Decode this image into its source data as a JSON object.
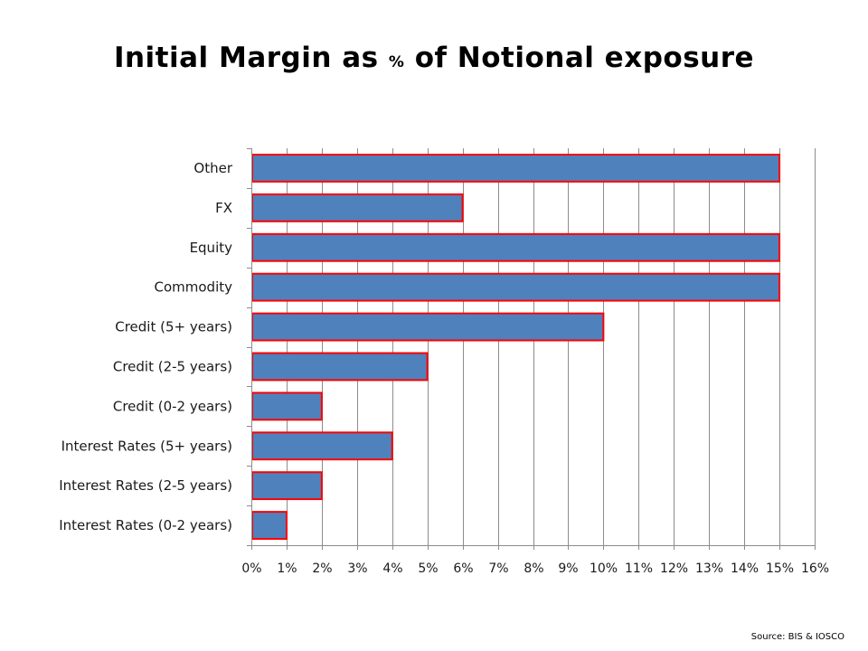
{
  "chart_data": {
    "type": "bar",
    "orientation": "horizontal",
    "title_parts": [
      "Initial Margin as ",
      "%",
      " of Notional exposure"
    ],
    "title": "Initial Margin as % of Notional exposure",
    "categories": [
      "Other",
      "FX",
      "Equity",
      "Commodity",
      "Credit (5+ years)",
      "Credit (2-5 years)",
      "Credit (0-2 years)",
      "Interest Rates (5+ years)",
      "Interest Rates (2-5 years)",
      "Interest Rates (0-2 years)"
    ],
    "values": [
      15,
      6,
      15,
      15,
      10,
      5,
      2,
      4,
      2,
      1
    ],
    "unit": "%",
    "xlim": [
      0,
      16
    ],
    "x_ticks": [
      "0%",
      "1%",
      "2%",
      "3%",
      "4%",
      "5%",
      "6%",
      "7%",
      "8%",
      "9%",
      "10%",
      "11%",
      "12%",
      "13%",
      "14%",
      "15%",
      "16%"
    ],
    "xlabel": "",
    "ylabel": "",
    "grid": "vertical",
    "legend": "none",
    "colors": {
      "bar_fill": "#4f81bd",
      "bar_border": "#ff0000",
      "grid": "#8c8c8c"
    },
    "source": "Source:  BIS & IOSCO"
  }
}
